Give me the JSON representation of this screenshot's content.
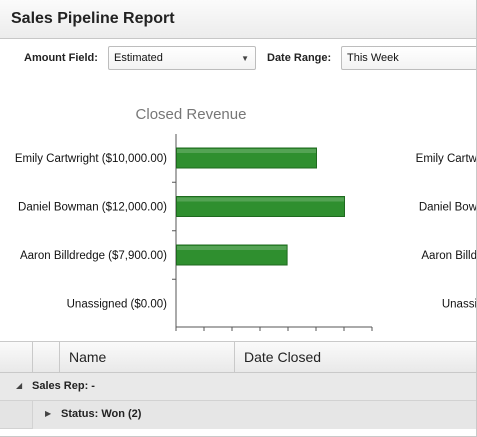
{
  "window": {
    "title": "Sales Pipeline Report"
  },
  "filters": {
    "amount_label": "Amount Field:",
    "amount_value": "Estimated",
    "date_label": "Date Range:",
    "date_value": "This Week"
  },
  "chart_data": {
    "type": "bar",
    "orientation": "horizontal",
    "title": "Closed Revenue",
    "categories": [
      "Emily Cartwright ($10,000.00)",
      "Daniel Bowman ($12,000.00)",
      "Aaron Billdredge ($7,900.00)",
      "Unassigned ($0.00)"
    ],
    "values": [
      10000,
      12000,
      7900,
      0
    ],
    "xlim": [
      0,
      14000
    ],
    "bar_color": "#2f8f2f",
    "grid": false
  },
  "second_chart_labels": [
    "Emily Cartw",
    "Daniel Bow",
    "Aaron Billd",
    "Unassi"
  ],
  "grid": {
    "columns": [
      "Name",
      "Date Closed"
    ],
    "group_label": "Sales Rep: -",
    "subgroup_label": "Status: Won (2)"
  }
}
